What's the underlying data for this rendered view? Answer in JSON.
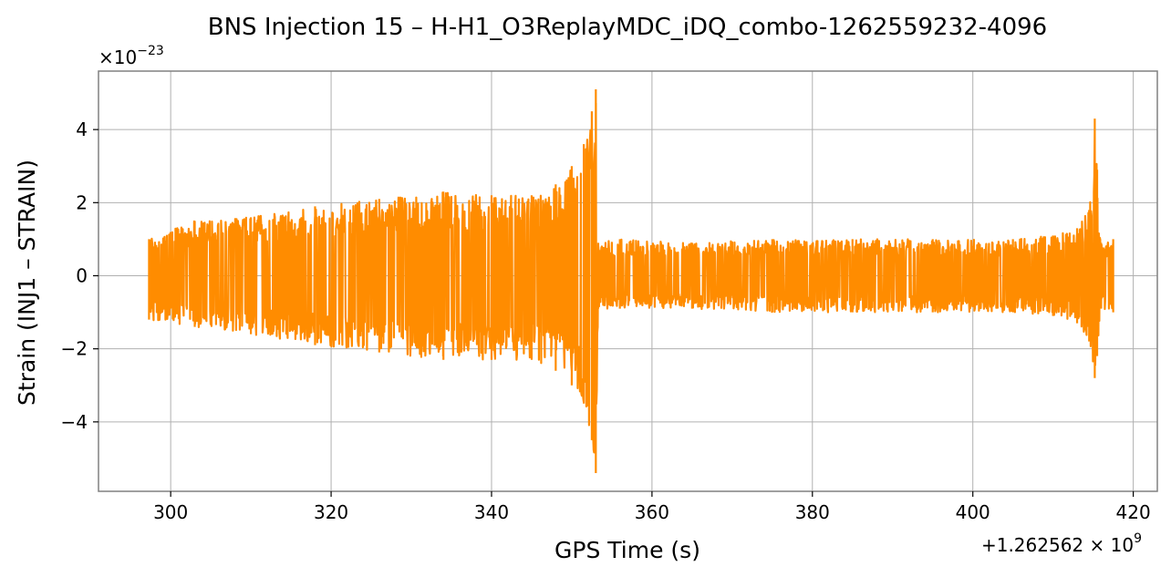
{
  "chart_data": {
    "type": "line",
    "title": "BNS Injection 15 – H-H1_O3ReplayMDC_iDQ_combo-1262559232-4096",
    "xlabel": "GPS Time (s)",
    "ylabel": "Strain (INJ1 – STRAIN)",
    "x_offset_label": "+1.262562 × 10",
    "x_offset_exponent": "9",
    "y_scale_label": "×10",
    "y_scale_exponent": "−23",
    "xlim": [
      291,
      423
    ],
    "ylim": [
      -5.9,
      5.6
    ],
    "x_ticks": [
      300,
      320,
      340,
      360,
      380,
      400,
      420
    ],
    "x_tick_labels": [
      "300",
      "320",
      "340",
      "360",
      "380",
      "400",
      "420"
    ],
    "y_ticks": [
      -4,
      -2,
      0,
      2,
      4
    ],
    "y_tick_labels": [
      "−4",
      "−2",
      "0",
      "2",
      "4"
    ],
    "grid": true,
    "series": [
      {
        "color": "#ff8c00",
        "x": [
          297.3,
          303.0,
          310.0,
          318.0,
          326.0,
          334.0,
          340.0,
          345.0,
          348.0,
          350.0,
          351.5,
          352.5,
          353.0,
          353.3,
          356.0,
          365.0,
          375.0,
          385.0,
          395.0,
          405.0,
          410.0,
          413.0,
          414.5,
          415.2,
          415.5,
          416.0,
          417.5
        ],
        "y_upper": [
          1.0,
          1.5,
          1.6,
          1.9,
          2.1,
          2.3,
          2.2,
          2.2,
          2.5,
          3.0,
          3.6,
          4.5,
          5.1,
          0.9,
          1.0,
          0.9,
          1.0,
          1.0,
          1.0,
          1.0,
          1.1,
          1.3,
          1.8,
          4.3,
          2.9,
          0.9,
          1.0
        ],
        "y_lower": [
          -1.2,
          -1.4,
          -1.6,
          -1.9,
          -2.1,
          -2.3,
          -2.3,
          -2.3,
          -2.6,
          -3.0,
          -3.5,
          -4.5,
          -5.4,
          -0.9,
          -0.9,
          -0.9,
          -1.0,
          -1.0,
          -1.0,
          -1.0,
          -1.1,
          -1.3,
          -1.8,
          -2.8,
          -2.2,
          -0.9,
          -1.0
        ]
      }
    ]
  }
}
